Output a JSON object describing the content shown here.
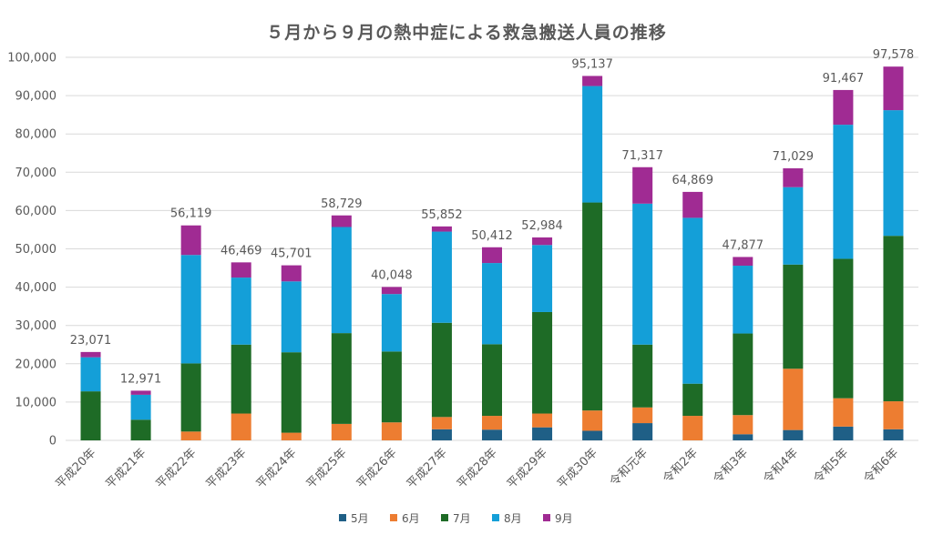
{
  "chart_data": {
    "type": "bar",
    "stacked": true,
    "title": "５月から９月の熱中症による救急搬送人員の推移",
    "ylim": [
      0,
      100000
    ],
    "yticks": [
      "0",
      "10,000",
      "20,000",
      "30,000",
      "40,000",
      "50,000",
      "60,000",
      "70,000",
      "80,000",
      "90,000",
      "100,000"
    ],
    "grid": true,
    "legend_position": "bottom",
    "categories": [
      "平成20年",
      "平成21年",
      "平成22年",
      "平成23年",
      "平成24年",
      "平成25年",
      "平成26年",
      "平成27年",
      "平成28年",
      "平成29年",
      "平成30年",
      "令和元年",
      "令和2年",
      "令和3年",
      "令和4年",
      "令和5年",
      "令和6年"
    ],
    "totals": [
      "23,071",
      "12,971",
      "56,119",
      "46,469",
      "45,701",
      "58,729",
      "40,048",
      "55,852",
      "50,412",
      "52,984",
      "95,137",
      "71,317",
      "64,869",
      "47,877",
      "71,029",
      "91,467",
      "97,578"
    ],
    "series": [
      {
        "name": "5月",
        "color": "#1f5f86",
        "values": [
          0,
          0,
          0,
          0,
          0,
          0,
          0,
          2900,
          2800,
          3400,
          2500,
          4500,
          0,
          1600,
          2700,
          3600,
          2900
        ]
      },
      {
        "name": "6月",
        "color": "#ed7d31",
        "values": [
          0,
          0,
          2300,
          7000,
          2000,
          4300,
          4700,
          3200,
          3600,
          3600,
          5300,
          4100,
          6400,
          5000,
          16000,
          7400,
          7300
        ]
      },
      {
        "name": "7月",
        "color": "#1e6b26",
        "values": [
          12800,
          5400,
          17800,
          18000,
          21000,
          23700,
          18500,
          24600,
          18700,
          26500,
          54300,
          16400,
          8400,
          21300,
          27200,
          36400,
          43200
        ]
      },
      {
        "name": "8月",
        "color": "#149fd8",
        "values": [
          8900,
          6500,
          28300,
          17500,
          18500,
          27700,
          15000,
          23800,
          21200,
          17500,
          30400,
          36800,
          43300,
          17700,
          20200,
          35000,
          32800
        ]
      },
      {
        "name": "9月",
        "color": "#a02b93",
        "values": [
          1371,
          1071,
          7719,
          3969,
          4201,
          3029,
          1848,
          1352,
          4112,
          1984,
          2637,
          9517,
          6769,
          2277,
          4929,
          9067,
          11378
        ]
      }
    ]
  }
}
